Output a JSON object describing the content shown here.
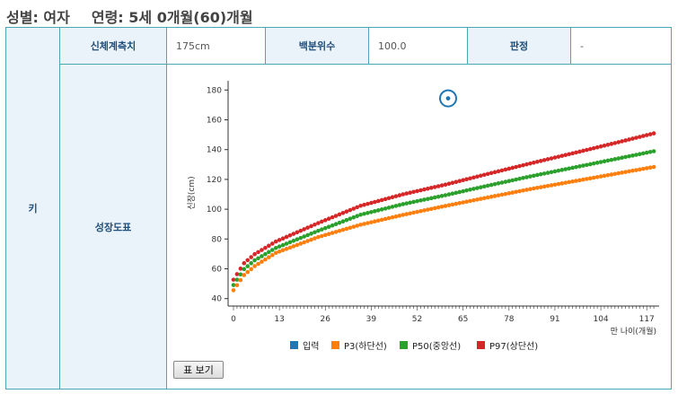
{
  "header": {
    "sex": "성별: 여자",
    "age": "연령: 5세 0개월(60)개월"
  },
  "table": {
    "section_label": "키",
    "measure_label": "신체계측치",
    "measure_value": "175cm",
    "percentile_label": "백분위수",
    "percentile_value": "100.0",
    "judgement_label": "판정",
    "judgement_value": "-",
    "chart_label": "성장도표"
  },
  "button": {
    "show_table": "표 보기"
  },
  "colors": {
    "input": "#1f77b4",
    "p3": "#ff7f0e",
    "p50": "#2ca02c",
    "p97": "#d62728",
    "border": "#4aa8b5"
  },
  "chart_data": {
    "type": "scatter",
    "title": "",
    "xlabel": "만 나이(개월)",
    "ylabel": "신장(cm)",
    "xlim": [
      0,
      120
    ],
    "ylim": [
      35,
      185
    ],
    "x_ticks": [
      0,
      13,
      26,
      39,
      52,
      65,
      78,
      91,
      104,
      117
    ],
    "y_ticks": [
      40,
      60,
      80,
      100,
      120,
      140,
      160,
      180
    ],
    "legend_position": "bottom",
    "input_point": {
      "x": 60,
      "y": 175
    },
    "series": [
      {
        "name": "입력",
        "key": "input",
        "x": [
          60
        ],
        "y": [
          175
        ]
      },
      {
        "name": "P3(하단선)",
        "key": "p3",
        "x": [
          0,
          3,
          6,
          12,
          24,
          36,
          48,
          60,
          72,
          84,
          96,
          108,
          120
        ],
        "y": [
          45.6,
          55.8,
          61.8,
          70.7,
          81.3,
          89.6,
          96.2,
          102.2,
          107.9,
          113.5,
          118.6,
          123.7,
          128.8
        ]
      },
      {
        "name": "P50(중앙선)",
        "key": "p50",
        "x": [
          0,
          3,
          6,
          12,
          24,
          36,
          48,
          60,
          72,
          84,
          96,
          108,
          120
        ],
        "y": [
          49.1,
          59.8,
          65.7,
          74.0,
          85.5,
          96.3,
          103.4,
          109.4,
          115.8,
          122.0,
          127.8,
          133.6,
          139.4
        ]
      },
      {
        "name": "P97(상단선)",
        "key": "p97",
        "x": [
          0,
          3,
          6,
          12,
          24,
          36,
          48,
          60,
          72,
          84,
          96,
          108,
          120
        ],
        "y": [
          52.7,
          63.8,
          69.8,
          78.3,
          90.7,
          102.3,
          110.0,
          116.5,
          123.7,
          130.7,
          137.5,
          144.4,
          151.5
        ]
      }
    ]
  }
}
